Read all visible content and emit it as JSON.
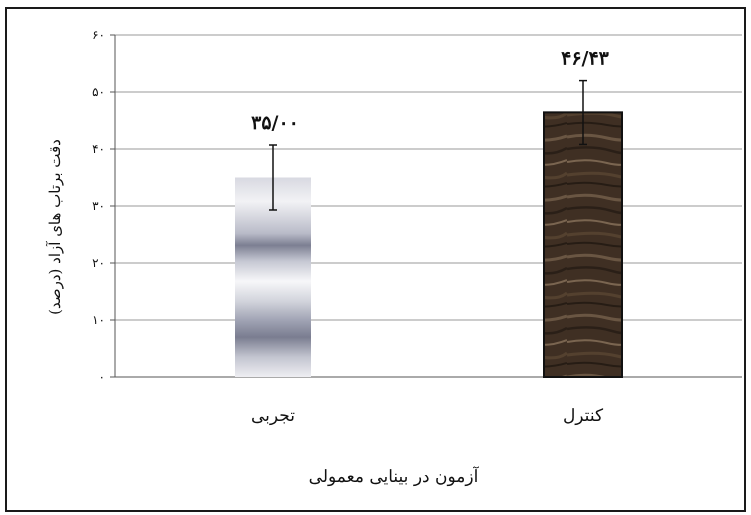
{
  "chart_data": {
    "type": "bar",
    "categories": [
      "تجربی",
      "کنترل"
    ],
    "values": [
      35.0,
      46.43
    ],
    "value_labels": [
      "۳۵/۰۰",
      "۴۶/۴۳"
    ],
    "error_low": [
      29.3,
      40.8
    ],
    "error_high": [
      40.7,
      52.0
    ],
    "xlabel": "آزمون در بینایی معمولی",
    "ylabel": "دقت برتاب های آزاد (درصد)",
    "ylim": [
      0,
      60
    ],
    "yticks": [
      0,
      10,
      20,
      30,
      40,
      50,
      60
    ],
    "ytick_labels": [
      "۰",
      "۱۰",
      "۲۰",
      "۳۰",
      "۴۰",
      "۵۰",
      "۶۰"
    ],
    "grid": true,
    "colors": {
      "experimental": "#8a8c9e",
      "control": "#3e2f23",
      "grid": "#9a9a9a",
      "axis": "#555555"
    }
  }
}
